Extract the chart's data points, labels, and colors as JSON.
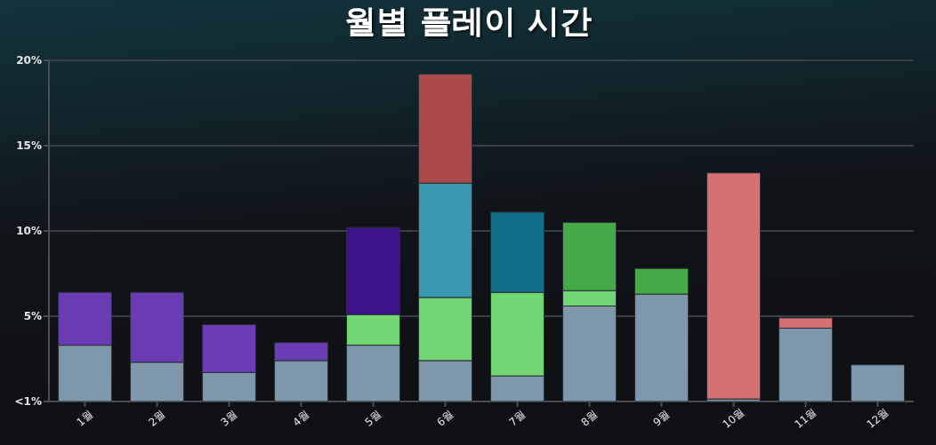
{
  "chart_data": {
    "type": "bar",
    "title": "월별 플레이 시간",
    "categories": [
      "1월",
      "2월",
      "3월",
      "4월",
      "5월",
      "6월",
      "7월",
      "8월",
      "9월",
      "10월",
      "11월",
      "12월"
    ],
    "stacked": true,
    "series": [
      {
        "values": [
          3.3,
          2.3,
          1.7,
          2.4,
          3.3,
          2.4,
          1.5,
          5.6,
          6.3,
          0.15,
          4.3,
          2.15
        ],
        "colors": [
          "#7f97aa",
          "#7f97aa",
          "#7f97aa",
          "#7f97aa",
          "#7f97aa",
          "#7f97aa",
          "#7f97aa",
          "#7f97aa",
          "#7f97aa",
          "#7f97aa",
          "#7f97aa",
          "#7f97aa"
        ]
      },
      {
        "values": [
          3.1,
          4.1,
          2.8,
          1.05,
          1.8,
          3.7,
          4.9,
          0.9,
          1.5,
          13.25,
          0.6,
          null
        ],
        "colors": [
          "#6a3db4",
          "#6a3db4",
          "#6a3db4",
          "#6a3db4",
          "#72d672",
          "#72d672",
          "#72d672",
          "#72d672",
          "#46aa47",
          "#d77070",
          "#d77070",
          null
        ]
      },
      {
        "values": [
          null,
          null,
          null,
          null,
          5.1,
          6.7,
          4.7,
          4.0,
          null,
          null,
          null,
          null
        ],
        "colors": [
          null,
          null,
          null,
          null,
          "#3c1289",
          "#3a97b0",
          "#106f89",
          "#46aa47",
          null,
          null,
          null,
          null
        ]
      },
      {
        "values": [
          null,
          null,
          null,
          null,
          null,
          6.4,
          null,
          null,
          null,
          null,
          null,
          null
        ],
        "colors": [
          null,
          null,
          null,
          null,
          null,
          "#ac4a4a",
          null,
          null,
          null,
          null,
          null,
          null
        ]
      }
    ],
    "ylim": [
      0,
      20
    ],
    "yticks": [
      {
        "value": 0,
        "label": "<1%"
      },
      {
        "value": 5,
        "label": "5%"
      },
      {
        "value": 10,
        "label": "10%"
      },
      {
        "value": 15,
        "label": "15%"
      },
      {
        "value": 20,
        "label": "20%"
      }
    ],
    "grid": "y"
  }
}
